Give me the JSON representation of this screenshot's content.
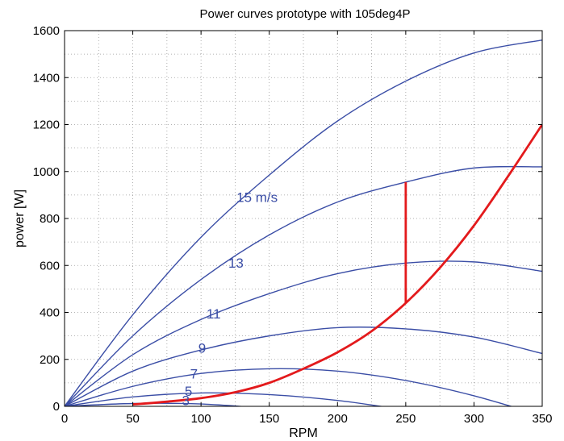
{
  "chart_data": {
    "type": "line",
    "title": "Power curves prototype with 105deg4P",
    "xlabel": "RPM",
    "ylabel": "power [W]",
    "xlim": [
      0,
      350
    ],
    "ylim": [
      0,
      1600
    ],
    "xticks": [
      "0",
      "50",
      "100",
      "150",
      "200",
      "250",
      "300",
      "350"
    ],
    "yticks": [
      "0",
      "200",
      "400",
      "600",
      "800",
      "1000",
      "1200",
      "1400",
      "1600"
    ],
    "grid": "dotted",
    "series": [
      {
        "name": "3",
        "color": "#3b4ea6",
        "x": [
          0,
          50,
          100,
          150,
          200,
          250
        ],
        "y": [
          0,
          12,
          10,
          -10,
          -40,
          -80
        ]
      },
      {
        "name": "5",
        "color": "#3b4ea6",
        "x": [
          0,
          50,
          100,
          150,
          200,
          250,
          300,
          350
        ],
        "y": [
          0,
          40,
          57,
          50,
          25,
          -15,
          -50,
          -95
        ]
      },
      {
        "name": "7",
        "color": "#3b4ea6",
        "x": [
          0,
          50,
          100,
          150,
          200,
          250,
          300,
          350
        ],
        "y": [
          0,
          85,
          140,
          160,
          150,
          110,
          45,
          -40
        ]
      },
      {
        "name": "9",
        "color": "#3b4ea6",
        "x": [
          0,
          50,
          100,
          150,
          200,
          250,
          300,
          350
        ],
        "y": [
          0,
          150,
          240,
          300,
          335,
          330,
          295,
          225
        ]
      },
      {
        "name": "11",
        "color": "#3b4ea6",
        "x": [
          0,
          50,
          100,
          150,
          200,
          250,
          300,
          350
        ],
        "y": [
          0,
          220,
          370,
          480,
          565,
          610,
          615,
          575
        ]
      },
      {
        "name": "13",
        "color": "#3b4ea6",
        "x": [
          0,
          50,
          100,
          150,
          200,
          250,
          300,
          350
        ],
        "y": [
          0,
          300,
          540,
          730,
          870,
          955,
          1015,
          1020
        ]
      },
      {
        "name": "15 m/s",
        "color": "#3b4ea6",
        "x": [
          0,
          50,
          100,
          150,
          200,
          250,
          300,
          350
        ],
        "y": [
          0,
          390,
          720,
          985,
          1215,
          1385,
          1505,
          1560
        ]
      },
      {
        "name": "",
        "color": "#e31a1c",
        "x": [
          50,
          75,
          100,
          125,
          150,
          175,
          200,
          225,
          250,
          275,
          300,
          325,
          350
        ],
        "y": [
          8,
          20,
          35,
          60,
          100,
          160,
          230,
          320,
          440,
          590,
          770,
          980,
          1200
        ]
      },
      {
        "name": "",
        "color": "#e31a1c",
        "x": [
          250,
          250
        ],
        "y": [
          955,
          440
        ]
      }
    ],
    "annotations": [
      {
        "text": "15 m/s",
        "x": 126,
        "y": 870
      },
      {
        "text": "13",
        "x": 120,
        "y": 590
      },
      {
        "text": "11",
        "x": 104,
        "y": 375
      },
      {
        "text": "9",
        "x": 98,
        "y": 228
      },
      {
        "text": "7",
        "x": 92,
        "y": 118
      },
      {
        "text": "5",
        "x": 88,
        "y": 45
      },
      {
        "text": "3",
        "x": 86,
        "y": 5
      }
    ]
  }
}
